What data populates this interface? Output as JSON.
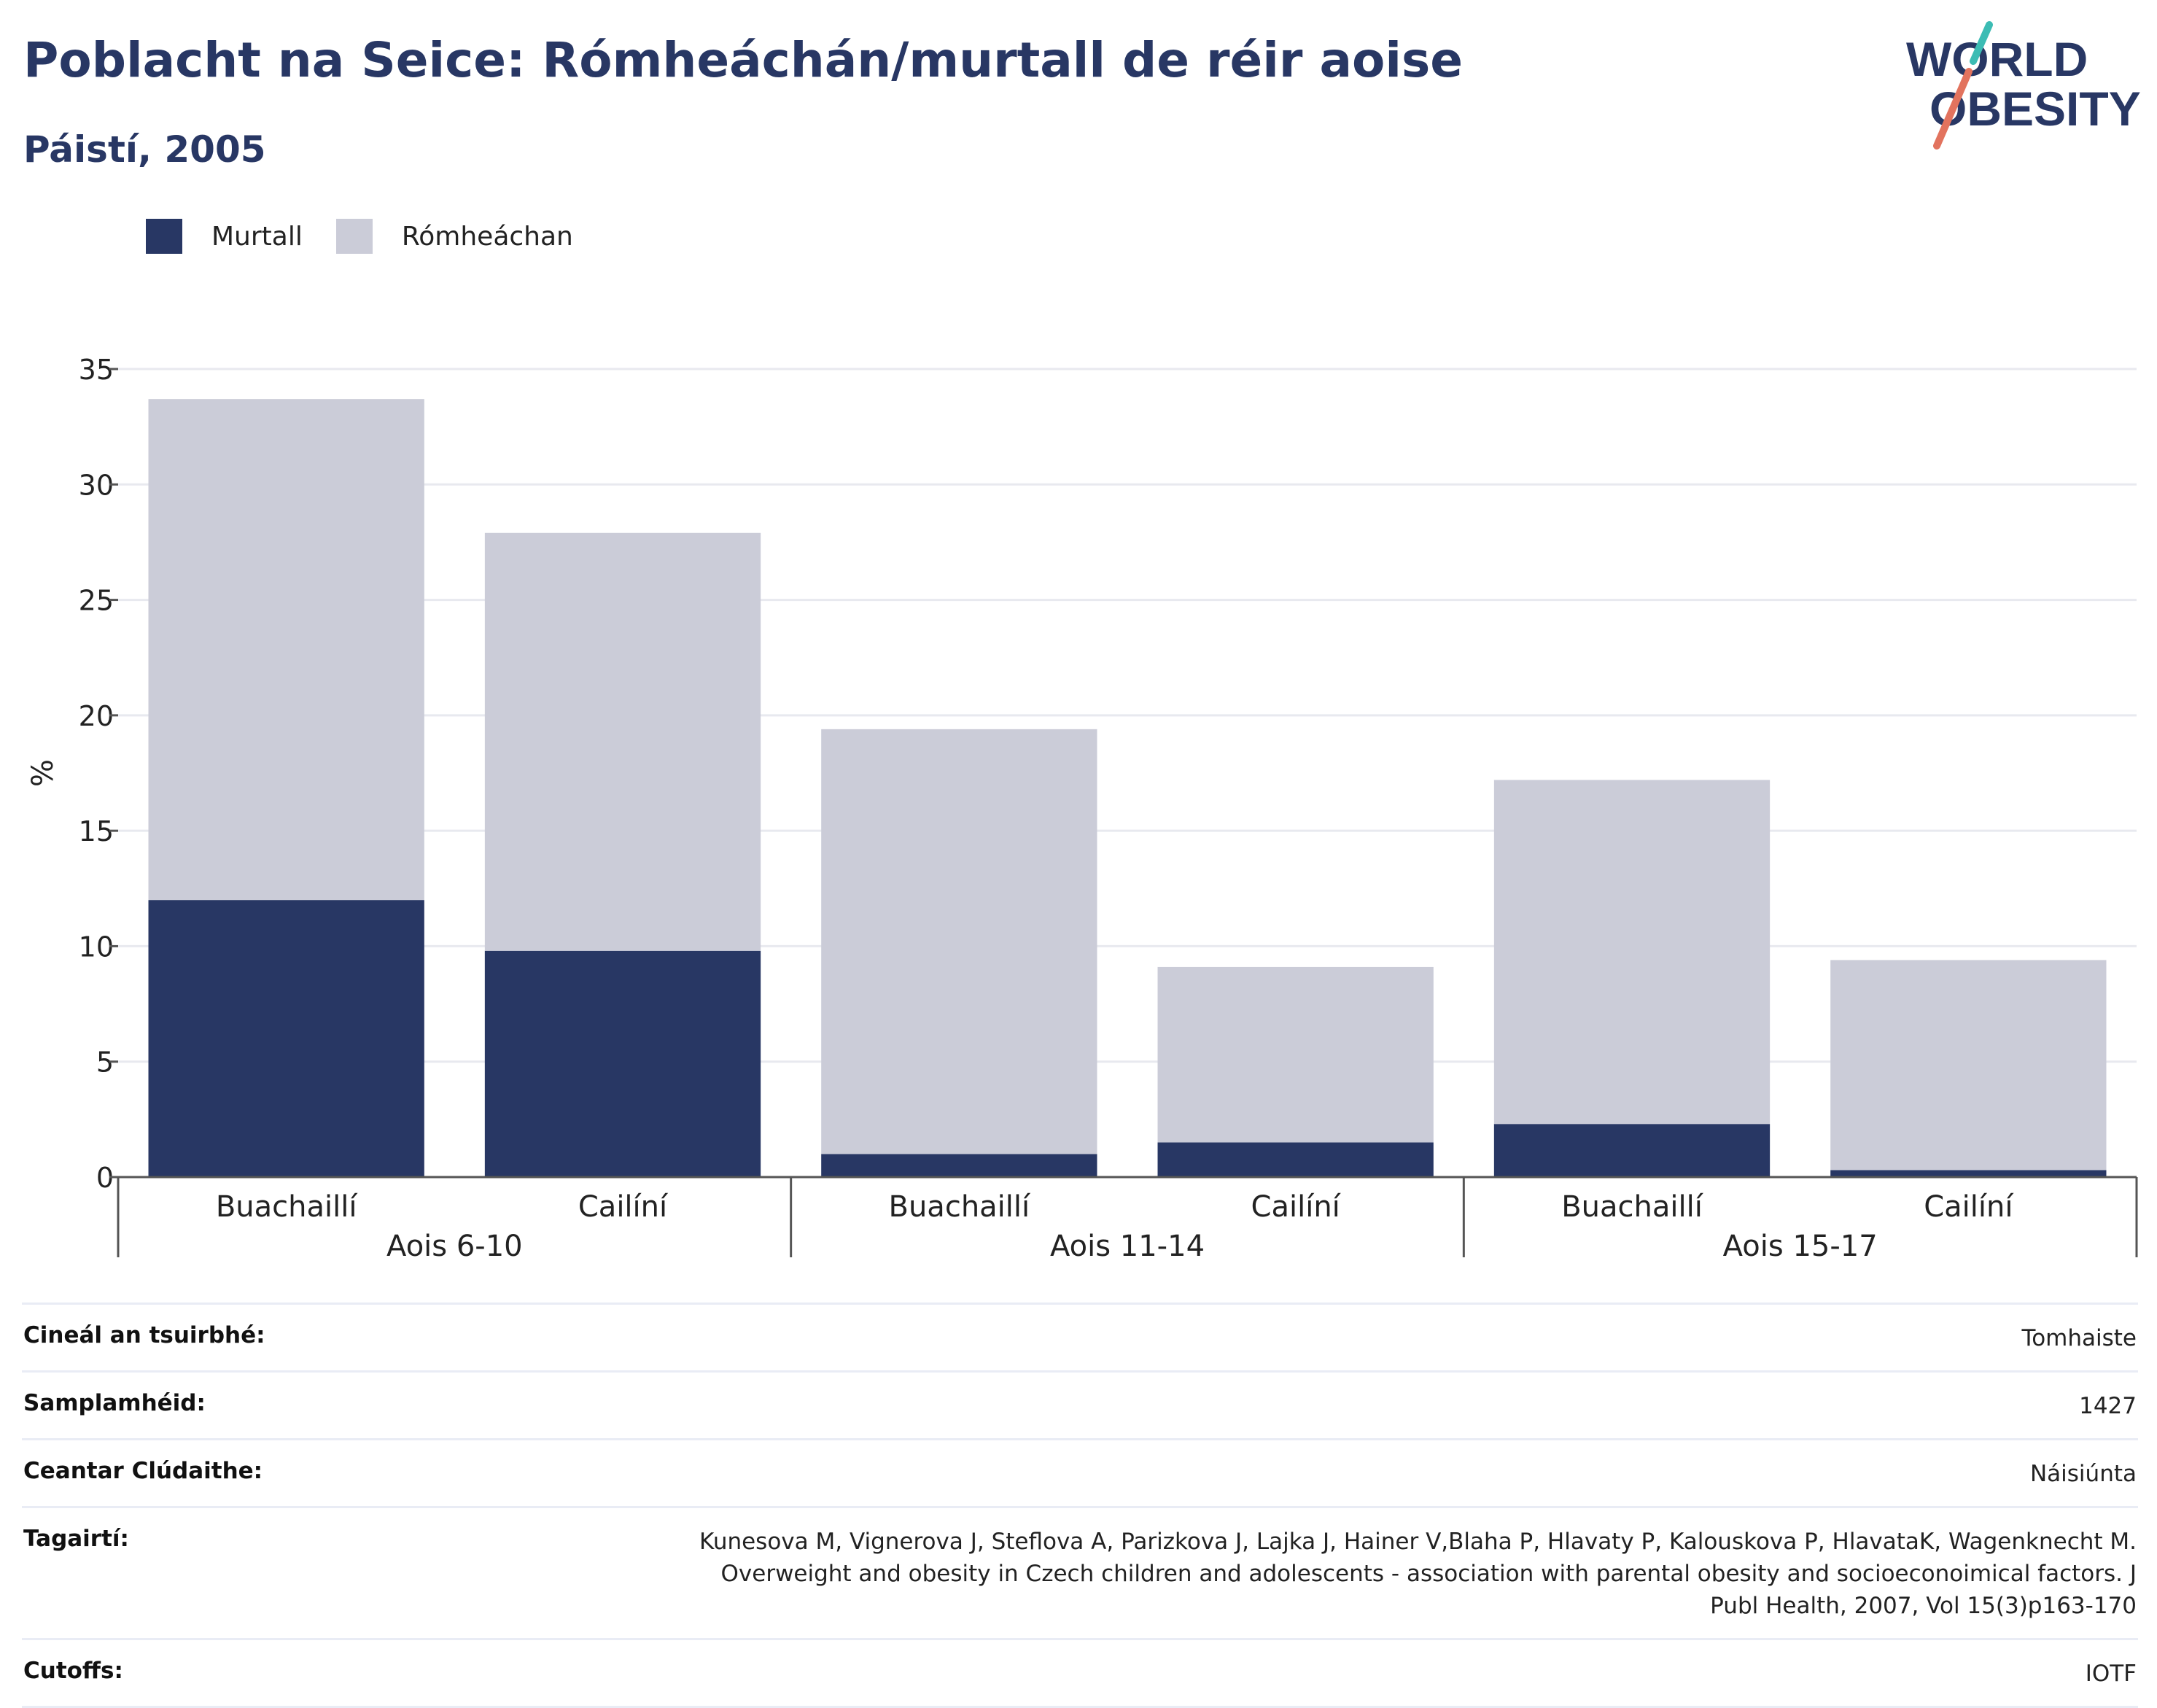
{
  "header": {
    "title": "Poblacht na Seice: Rómheáchán/murtall de réir aoise",
    "subtitle": "Páistí, 2005"
  },
  "logo": {
    "line1": "WORLD",
    "line2": "OBESITY"
  },
  "legend": [
    {
      "label": "Murtall",
      "color": "#283764"
    },
    {
      "label": "Rómheáchan",
      "color": "#cbccd8"
    }
  ],
  "chart_data": {
    "type": "bar",
    "stacked": true,
    "ylabel": "%",
    "ylim": [
      0,
      35
    ],
    "yticks": [
      0,
      5,
      10,
      15,
      20,
      25,
      30,
      35
    ],
    "grid": true,
    "legend_position": "top-left",
    "groups": [
      {
        "label": "Aois 6-10",
        "categories": [
          "Buachaillí",
          "Cailíní"
        ]
      },
      {
        "label": "Aois 11-14",
        "categories": [
          "Buachaillí",
          "Cailíní"
        ]
      },
      {
        "label": "Aois 15-17",
        "categories": [
          "Buachaillí",
          "Cailíní"
        ]
      }
    ],
    "categories": [
      "Buachaillí",
      "Cailíní",
      "Buachaillí",
      "Cailíní",
      "Buachaillí",
      "Cailíní"
    ],
    "series": [
      {
        "name": "Murtall",
        "color": "#283764",
        "values": [
          12.0,
          9.8,
          1.0,
          1.5,
          2.3,
          0.3
        ]
      },
      {
        "name": "Rómheáchan",
        "color": "#cbccd8",
        "values": [
          21.7,
          18.1,
          18.4,
          7.6,
          14.9,
          9.1
        ]
      }
    ]
  },
  "info": [
    {
      "key": "Cineál an tsuirbhé:",
      "value": "Tomhaiste"
    },
    {
      "key": "Samplamhéid:",
      "value": "1427"
    },
    {
      "key": "Ceantar Clúdaithe:",
      "value": "Náisiúnta"
    },
    {
      "key": "Tagairtí:",
      "value": "Kunesova M, Vignerova J, Steflova A, Parizkova J, Lajka J, Hainer V,Blaha P, Hlavaty P, Kalouskova P, HlavataK, Wagenknecht M. Overweight and obesity in Czech children and adolescents - association with parental obesity and socioeconoimical factors. J Publ Health, 2007, Vol 15(3)p163-170"
    },
    {
      "key": "Cutoffs:",
      "value": "IOTF"
    }
  ]
}
